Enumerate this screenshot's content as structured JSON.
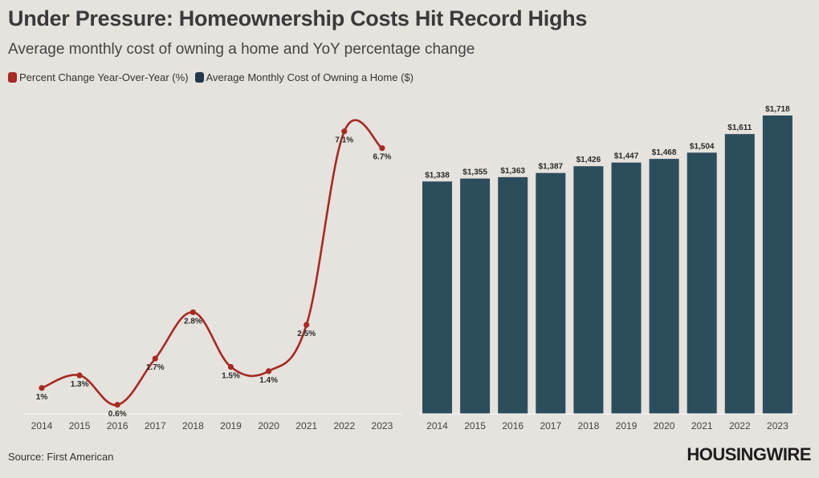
{
  "title": "Under Pressure: Homeownership Costs Hit Record Highs",
  "subtitle": "Average monthly cost of owning a home and YoY percentage change",
  "legend": [
    {
      "label": "Percent Change Year-Over-Year (%)",
      "color": "#a52a22"
    },
    {
      "label": "Average Monthly Cost of Owning a Home ($)",
      "color": "#23394a"
    }
  ],
  "source": "Source: First American",
  "logo": "HOUSINGWIRE",
  "colors": {
    "line": "#a52a22",
    "bar": "#2c4d5c",
    "axis": "#ffffff",
    "background": "#e6e2dd"
  },
  "chart_data": [
    {
      "type": "line",
      "title": "Percent Change Year-Over-Year (%)",
      "x": [
        "2014",
        "2015",
        "2016",
        "2017",
        "2018",
        "2019",
        "2020",
        "2021",
        "2022",
        "2023"
      ],
      "values": [
        1.0,
        1.3,
        0.6,
        1.7,
        2.8,
        1.5,
        1.4,
        2.5,
        7.1,
        6.7
      ],
      "labels": [
        "1%",
        "1.3%",
        "0.6%",
        "1.7%",
        "2.8%",
        "1.5%",
        "1.4%",
        "2.5%",
        "7.1%",
        "6.7%"
      ],
      "ylim": [
        0.5,
        7.4
      ],
      "grid": false
    },
    {
      "type": "bar",
      "title": "Average Monthly Cost of Owning a Home ($)",
      "categories": [
        "2014",
        "2015",
        "2016",
        "2017",
        "2018",
        "2019",
        "2020",
        "2021",
        "2022",
        "2023"
      ],
      "values": [
        1338,
        1355,
        1363,
        1387,
        1426,
        1447,
        1468,
        1504,
        1611,
        1718
      ],
      "labels": [
        "$1,338",
        "$1,355",
        "$1,363",
        "$1,387",
        "$1,426",
        "$1,447",
        "$1,468",
        "$1,504",
        "$1,611",
        "$1,718"
      ],
      "ylim": [
        0,
        1718
      ],
      "grid": false
    }
  ]
}
